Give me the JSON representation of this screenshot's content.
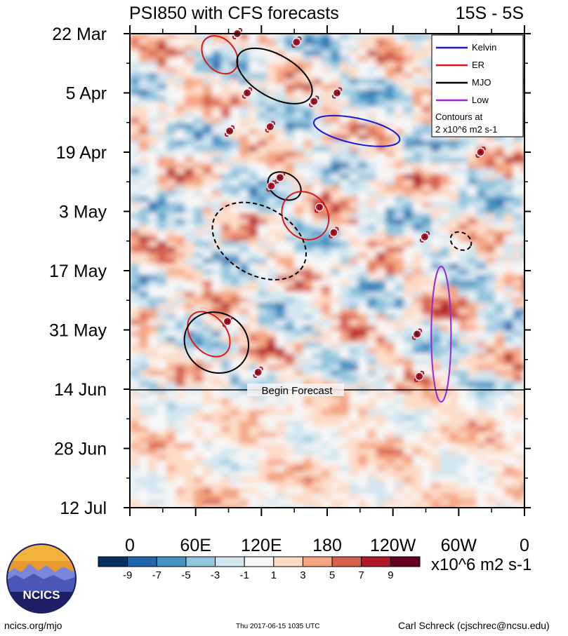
{
  "chart_data": {
    "type": "heatmap",
    "title": "PSI850 with CFS forecasts",
    "region": "15S - 5S",
    "x_axis": {
      "quantity": "longitude",
      "ticks": [
        "0",
        "60E",
        "120E",
        "180",
        "120W",
        "60W",
        "0"
      ],
      "tick_values_deg_east": [
        0,
        60,
        120,
        180,
        240,
        300,
        360
      ],
      "range": [
        0,
        360
      ]
    },
    "y_axis": {
      "quantity": "date",
      "ticks": [
        "22 Mar",
        "5 Apr",
        "19 Apr",
        "3 May",
        "17 May",
        "31 May",
        "14 Jun",
        "28 Jun",
        "12 Jul"
      ],
      "tick_dates": [
        "2017-03-22",
        "2017-04-05",
        "2017-04-19",
        "2017-05-03",
        "2017-05-17",
        "2017-05-31",
        "2017-06-14",
        "2017-06-28",
        "2017-07-12"
      ],
      "range": [
        "2017-03-22",
        "2017-07-12"
      ],
      "direction": "time increases downward"
    },
    "forecast_line": {
      "date": "2017-06-14",
      "label": "Begin Forecast"
    },
    "colorbar": {
      "labels": [
        "-9",
        "-7",
        "-5",
        "-3",
        "-1",
        "1",
        "3",
        "5",
        "7",
        "9"
      ],
      "levels": [
        -9,
        -7,
        -5,
        -3,
        -1,
        1,
        3,
        5,
        7,
        9
      ],
      "colors": [
        "#053061",
        "#2166ac",
        "#4393c3",
        "#92c5de",
        "#d1e5f0",
        "#f7f7f7",
        "#fddbc7",
        "#f4a582",
        "#d6604d",
        "#b2182b",
        "#67001f"
      ],
      "units": "x10^6 m2 s-1"
    },
    "legend": {
      "placement": "top-right",
      "entries": [
        {
          "name": "Kelvin",
          "color": "#1a1ad6"
        },
        {
          "name": "ER",
          "color": "#e01818"
        },
        {
          "name": "MJO",
          "color": "#000000"
        },
        {
          "name": "Low",
          "color": "#9a28d0"
        }
      ],
      "note_lines": [
        "Contours at",
        "2 x10^6 m2 s-1"
      ]
    },
    "contours": [
      {
        "type": "ER",
        "center_lon": 82,
        "center_date": "2017-03-27",
        "lon_half": 14,
        "days_half": 5
      },
      {
        "type": "MJO",
        "center_lon": 132,
        "center_date": "2017-04-01",
        "lon_half": 38,
        "days_half": 5
      },
      {
        "type": "Kelvin",
        "center_lon": 207,
        "center_date": "2017-04-14",
        "lon_half": 40,
        "days_half": 3
      },
      {
        "type": "MJO",
        "center_lon": 141,
        "center_date": "2017-04-27",
        "lon_half": 16,
        "days_half": 3
      },
      {
        "type": "ER",
        "center_lon": 160,
        "center_date": "2017-05-04",
        "lon_half": 20,
        "days_half": 6
      },
      {
        "type": "MJO",
        "center_lon": 118,
        "center_date": "2017-05-10",
        "lon_half": 46,
        "days_half": 8,
        "dashed": true
      },
      {
        "type": "MJO",
        "center_lon": 302,
        "center_date": "2017-05-10",
        "lon_half": 10,
        "days_half": 2,
        "dashed": true
      },
      {
        "type": "ER",
        "center_lon": 72,
        "center_date": "2017-06-01",
        "lon_half": 16,
        "days_half": 6
      },
      {
        "type": "MJO",
        "center_lon": 79,
        "center_date": "2017-06-03",
        "lon_half": 30,
        "days_half": 7
      },
      {
        "type": "Low",
        "center_lon": 284,
        "center_date": "2017-06-01",
        "lon_half": 9,
        "days_half": 16
      }
    ],
    "storms": [
      {
        "label": "C",
        "lon": 98,
        "date": "2017-03-22"
      },
      {
        "label": "D",
        "lon": 152,
        "date": "2017-03-24"
      },
      {
        "label": "E",
        "lon": 107,
        "date": "2017-04-05"
      },
      {
        "label": "14",
        "lon": 189,
        "date": "2017-04-05"
      },
      {
        "label": "C",
        "lon": 168,
        "date": "2017-04-07"
      },
      {
        "label": "2",
        "lon": 128,
        "date": "2017-04-13"
      },
      {
        "label": "M",
        "lon": 91,
        "date": "2017-04-14"
      },
      {
        "label": "A",
        "lon": 320,
        "date": "2017-04-19"
      },
      {
        "label": "M",
        "lon": 137,
        "date": "2017-04-25"
      },
      {
        "label": "F",
        "lon": 129,
        "date": "2017-04-27"
      },
      {
        "label": "D",
        "lon": 173,
        "date": "2017-05-02"
      },
      {
        "label": "E",
        "lon": 186,
        "date": "2017-05-08"
      },
      {
        "label": "A",
        "lon": 269,
        "date": "2017-05-09"
      },
      {
        "label": "M",
        "lon": 89,
        "date": "2017-05-29"
      },
      {
        "label": "B",
        "lon": 262,
        "date": "2017-06-01"
      },
      {
        "label": "M",
        "lon": 117,
        "date": "2017-06-10"
      },
      {
        "label": "C",
        "lon": 264,
        "date": "2017-06-11"
      }
    ]
  },
  "footer": {
    "url": "ncics.org/mjo",
    "timestamp": "Thu 2017-06-15 1035 UTC",
    "author": "Carl Schreck (cjschrec@ncsu.edu)",
    "logo_text": "NCICS"
  }
}
